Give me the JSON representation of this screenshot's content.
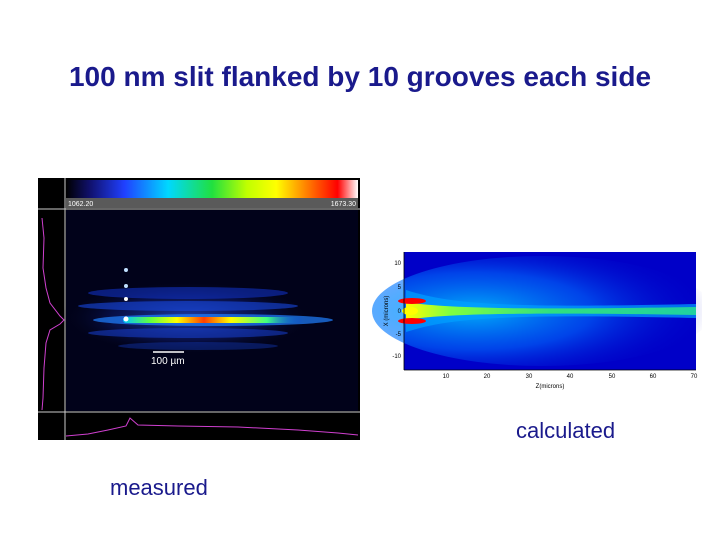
{
  "slide": {
    "title": "100 nm slit flanked by 10 grooves each side",
    "caption_calculated": "calculated",
    "caption_measured": "measured"
  },
  "measured": {
    "colorbar_min": "1062.20",
    "colorbar_max": "1673.30",
    "scale_bar_label": "100 µm"
  },
  "calculated": {
    "xlabel": "Z(microns)",
    "ylabel": "X (microns)",
    "x_ticks": [
      "10",
      "20",
      "30",
      "40",
      "50",
      "60",
      "70"
    ],
    "y_ticks": [
      "10",
      "5",
      "0",
      "-5",
      "-10"
    ]
  },
  "colors": {
    "title": "#1a1a8c",
    "plot_background": "#0000c8",
    "profile_line": "#d040d0"
  }
}
